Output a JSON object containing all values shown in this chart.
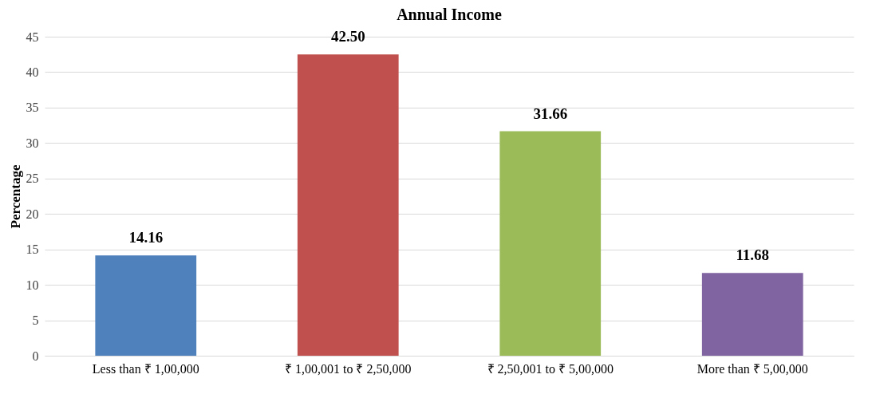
{
  "chart_data": {
    "type": "bar",
    "title": "Annual Income",
    "ylabel": "Percentage",
    "categories": [
      "Less than ₹ 1,00,000",
      "₹ 1,00,001 to ₹ 2,50,000",
      "₹ 2,50,001 to ₹ 5,00,000",
      "More than ₹ 5,00,000"
    ],
    "values": [
      14.16,
      42.5,
      31.66,
      11.68
    ],
    "value_labels": [
      "14.16",
      "42.50",
      "31.66",
      "11.68"
    ],
    "colors": [
      "#4f81bd",
      "#c0504d",
      "#9bbb59",
      "#8064a2"
    ],
    "ylim": [
      0,
      45
    ],
    "yticks": [
      0,
      5,
      10,
      15,
      20,
      25,
      30,
      35,
      40,
      45
    ],
    "grid": "y"
  }
}
